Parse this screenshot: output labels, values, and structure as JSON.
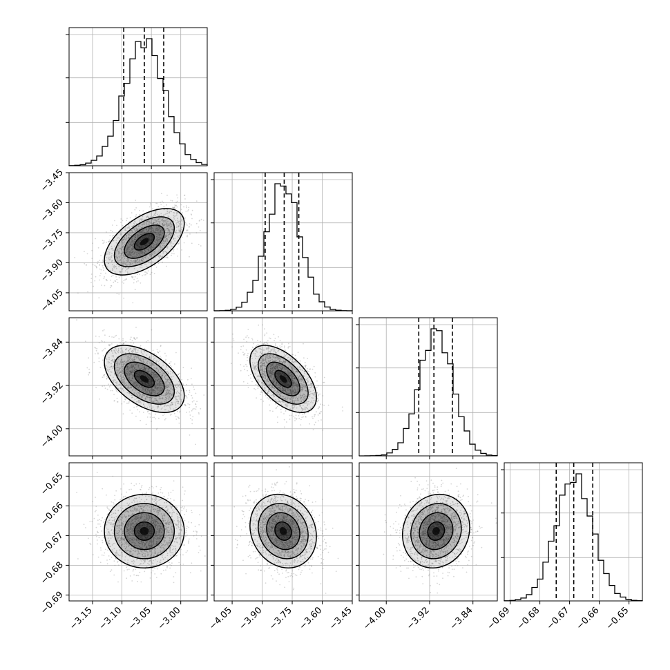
{
  "chart_data": {
    "type": "corner",
    "parameters": [
      {
        "range": [
          -3.19,
          -2.955
        ],
        "ticks": [
          -3.15,
          -3.1,
          -3.05,
          -3.0
        ],
        "tick_labels": [
          "−3.15",
          "−3.10",
          "−3.05",
          "−3.00"
        ],
        "quantiles": [
          -3.097,
          -3.062,
          -3.029
        ],
        "mean": -3.062,
        "sigma": 0.034,
        "hist_ticks": [
          0.33,
          0.67,
          1.0
        ]
      },
      {
        "range": [
          -4.14,
          -3.45
        ],
        "ticks": [
          -4.05,
          -3.9,
          -3.75,
          -3.6,
          -3.45
        ],
        "tick_labels": [
          "−4.05",
          "−3.90",
          "−3.75",
          "−3.60",
          "−3.45"
        ],
        "quantiles": [
          -3.885,
          -3.79,
          -3.717
        ],
        "mean": -3.795,
        "sigma": 0.083,
        "hist_ticks": [
          0.33,
          0.67,
          1.0
        ]
      },
      {
        "range": [
          -4.05,
          -3.795
        ],
        "ticks": [
          -4.0,
          -3.92,
          -3.84
        ],
        "tick_labels": [
          "−4.00",
          "−3.92",
          "−3.84"
        ],
        "quantiles": [
          -3.94,
          -3.912,
          -3.878
        ],
        "mean": -3.908,
        "sigma": 0.031,
        "hist_ticks": [
          0.33,
          0.67,
          1.0
        ]
      },
      {
        "range": [
          -0.692,
          -0.6455
        ],
        "ticks": [
          -0.69,
          -0.68,
          -0.67,
          -0.66,
          -0.65
        ],
        "tick_labels": [
          "−0.69",
          "−0.68",
          "−0.67",
          "−0.66",
          "−0.65"
        ],
        "quantiles": [
          -0.6745,
          -0.6686,
          -0.6622
        ],
        "mean": -0.6685,
        "sigma": 0.0062,
        "hist_ticks": [
          0.33,
          0.67,
          1.0
        ]
      }
    ],
    "correlations": [
      [
        1.0,
        0.55,
        -0.5,
        0.0
      ],
      [
        0.55,
        1.0,
        -0.55,
        -0.15
      ],
      [
        -0.5,
        -0.55,
        1.0,
        0.1
      ],
      [
        0.0,
        -0.15,
        0.1,
        1.0
      ]
    ],
    "grid": true,
    "samples_per_panel": 1800,
    "colors": {
      "line": "#000000",
      "grid": "#b0b0b0",
      "points": "#888888"
    }
  }
}
